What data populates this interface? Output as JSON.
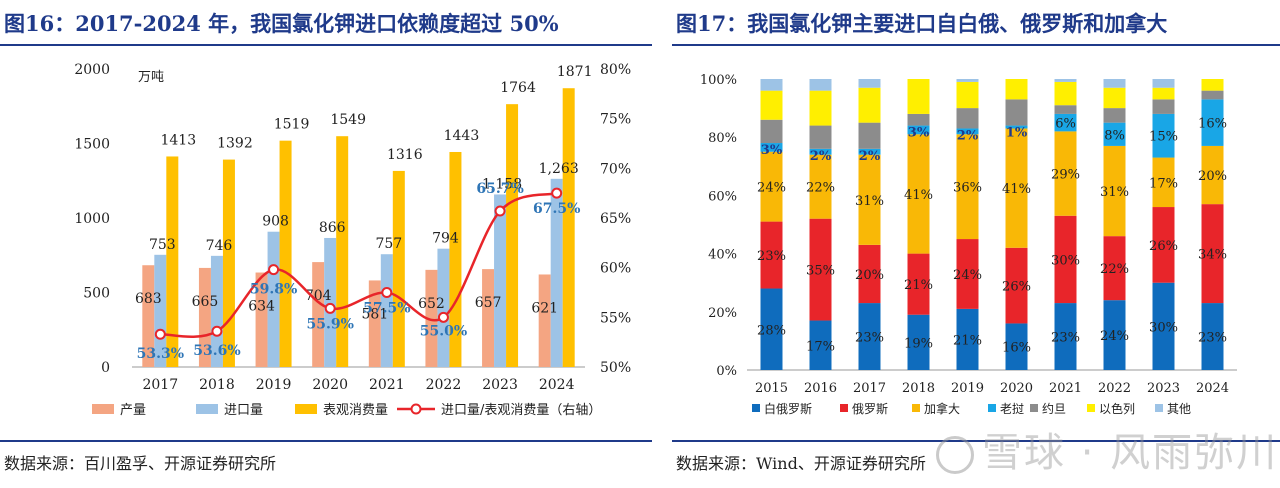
{
  "left": {
    "title": "图16：2017-2024 年，我国氯化钾进口依赖度超过 50%",
    "source": "数据来源：百川盈孚、开源证券研究所"
  },
  "right": {
    "title": "图17：我国氯化钾主要进口自白俄、俄罗斯和加拿大",
    "source": "数据来源：Wind、开源证券研究所"
  },
  "watermark": "雪球 · 风雨弥川",
  "chart_data": [
    {
      "type": "bar",
      "title": "图16：2017-2024 年，我国氯化钾进口依赖度超过 50%",
      "unit": "万吨",
      "categories": [
        "2017",
        "2018",
        "2019",
        "2020",
        "2021",
        "2022",
        "2023",
        "2024"
      ],
      "ylim": [
        0,
        2000
      ],
      "yticks": [
        "0",
        "500",
        "1000",
        "1500",
        "2000"
      ],
      "y2lim": [
        50,
        80
      ],
      "y2ticks": [
        "50%",
        "55%",
        "60%",
        "65%",
        "70%",
        "75%",
        "80%"
      ],
      "series": [
        {
          "name": "产量",
          "color": "#f4a582",
          "values": [
            683,
            665,
            634,
            704,
            581,
            652,
            657,
            621
          ],
          "labels": [
            "683",
            "665",
            "634",
            "704",
            "581",
            "652",
            "657",
            "621"
          ]
        },
        {
          "name": "进口量",
          "color": "#9dc3e6",
          "values": [
            753,
            746,
            908,
            866,
            757,
            794,
            1158,
            1263
          ],
          "labels": [
            "753",
            "746",
            "908",
            "866",
            "757",
            "794",
            "1,158",
            "1,263"
          ]
        },
        {
          "name": "表观消费量",
          "color": "#ffc000",
          "values": [
            1413,
            1392,
            1519,
            1549,
            1316,
            1443,
            1764,
            1871
          ],
          "labels": [
            "1413",
            "1392",
            "1519",
            "1549",
            "1316",
            "1443",
            "1764",
            "1871"
          ]
        },
        {
          "name": "进口量/表观消费量（右轴）",
          "color": "#e8252a",
          "axis": "right",
          "values": [
            53.3,
            53.6,
            59.8,
            55.9,
            57.5,
            55.0,
            65.7,
            67.5
          ],
          "labels": [
            "53.3%",
            "53.6%",
            "59.8%",
            "55.9%",
            "57.5%",
            "55.0%",
            "65.7%",
            "67.5%"
          ]
        }
      ]
    },
    {
      "type": "bar",
      "stacked": true,
      "title": "图17：我国氯化钾主要进口自白俄、俄罗斯和加拿大",
      "categories": [
        "2015",
        "2016",
        "2017",
        "2018",
        "2019",
        "2020",
        "2021",
        "2022",
        "2023",
        "2024"
      ],
      "ylim": [
        0,
        100
      ],
      "yticks": [
        "0%",
        "20%",
        "40%",
        "60%",
        "80%",
        "100%"
      ],
      "series": [
        {
          "name": "白俄罗斯",
          "color": "#0f6cbd",
          "values": [
            28,
            17,
            23,
            19,
            21,
            16,
            23,
            24,
            30,
            23
          ],
          "labels": [
            "28%",
            "17%",
            "23%",
            "19%",
            "21%",
            "16%",
            "23%",
            "24%",
            "30%",
            "23%"
          ]
        },
        {
          "name": "俄罗斯",
          "color": "#e8252a",
          "values": [
            23,
            35,
            20,
            21,
            24,
            26,
            30,
            22,
            26,
            34
          ],
          "labels": [
            "23%",
            "35%",
            "20%",
            "21%",
            "24%",
            "26%",
            "30%",
            "22%",
            "26%",
            "34%"
          ]
        },
        {
          "name": "加拿大",
          "color": "#f9b806",
          "values": [
            24,
            22,
            31,
            41,
            36,
            41,
            29,
            31,
            17,
            20
          ],
          "labels": [
            "24%",
            "22%",
            "31%",
            "41%",
            "36%",
            "41%",
            "29%",
            "31%",
            "17%",
            "20%"
          ]
        },
        {
          "name": "老挝",
          "color": "#19a6e6",
          "values": [
            3,
            2,
            2,
            3,
            2,
            1,
            6,
            8,
            15,
            16
          ],
          "labels": [
            "3%",
            "2%",
            "2%",
            "3%",
            "2%",
            "1%",
            "6%",
            "8%",
            "15%",
            "16%"
          ]
        },
        {
          "name": "约旦",
          "color": "#8c8c8c",
          "values": [
            8,
            8,
            9,
            4,
            7,
            9,
            3,
            5,
            5,
            3
          ],
          "labels": [
            null,
            null,
            null,
            null,
            null,
            null,
            null,
            null,
            null,
            null
          ]
        },
        {
          "name": "以色列",
          "color": "#ffef00",
          "values": [
            10,
            12,
            12,
            12,
            9,
            7,
            8,
            7,
            4,
            4
          ],
          "labels": [
            null,
            null,
            null,
            null,
            null,
            null,
            null,
            null,
            null,
            null
          ]
        },
        {
          "name": "其他",
          "color": "#9dc3e6",
          "values": [
            4,
            4,
            3,
            0,
            1,
            0,
            1,
            3,
            3,
            0
          ],
          "labels": [
            null,
            null,
            null,
            null,
            null,
            null,
            null,
            null,
            null,
            null
          ]
        }
      ]
    }
  ]
}
